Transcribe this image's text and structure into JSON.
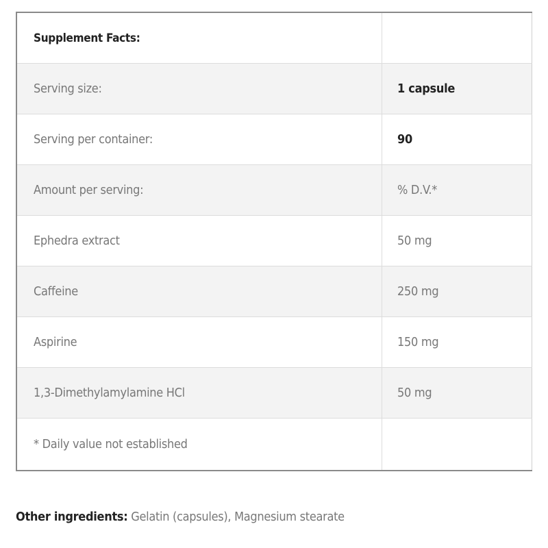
{
  "table": {
    "title": "Supplement Facts:",
    "rows": [
      {
        "label": "Serving size:",
        "value": "1 capsule",
        "bold": true
      },
      {
        "label": "Serving per container:",
        "value": "90",
        "bold": true
      },
      {
        "label": "Amount per serving:",
        "value": "% D.V.*"
      },
      {
        "label": "Ephedra extract",
        "value": "50 mg"
      },
      {
        "label": "Caffeine",
        "value": "250 mg"
      },
      {
        "label": "Aspirine",
        "value": "150 mg"
      },
      {
        "label": "1,3-Dimethylamylamine HCl",
        "value": "50 mg"
      },
      {
        "label": "* Daily value not established",
        "value": ""
      }
    ]
  },
  "other": {
    "label": "Other ingredients:",
    "text": " Gelatin (capsules), Magnesium stearate"
  }
}
